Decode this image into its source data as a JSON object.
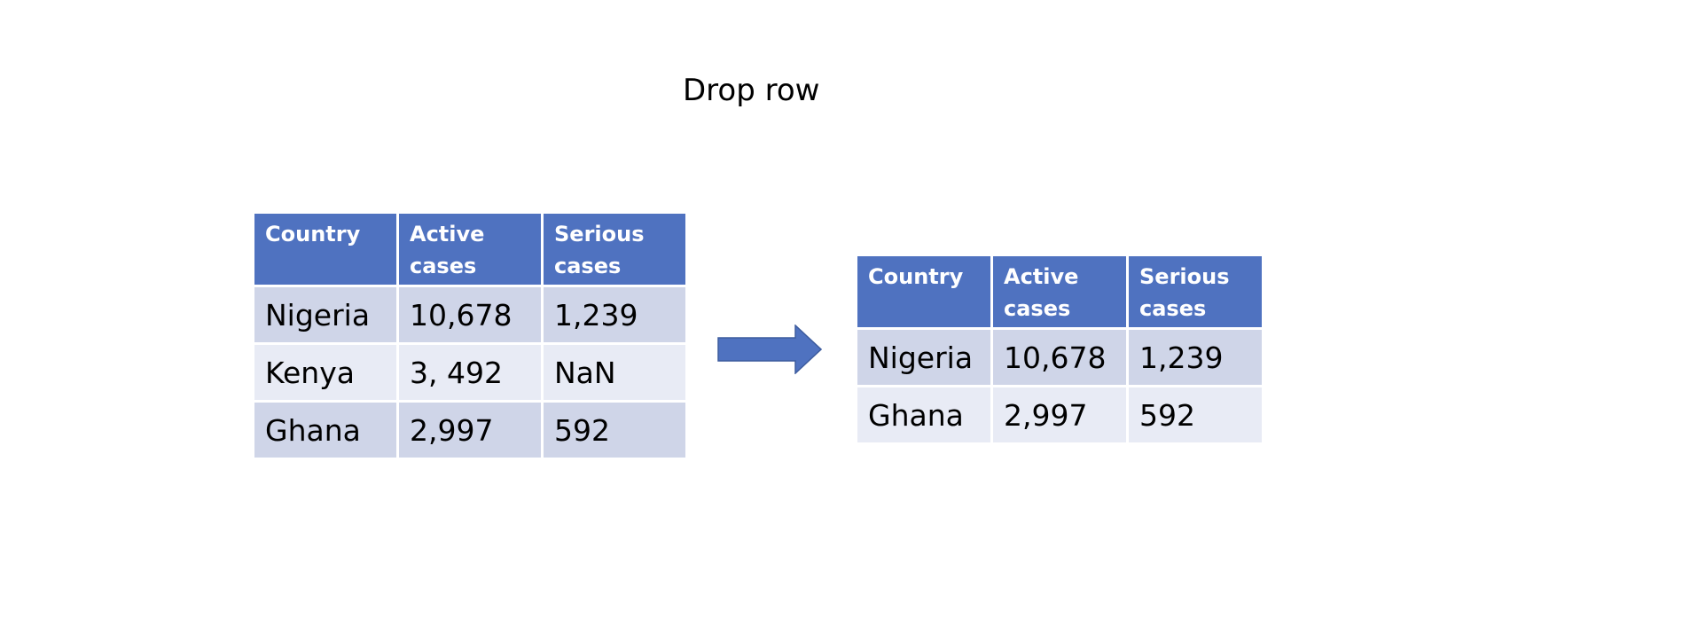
{
  "title": "Drop row",
  "colors": {
    "header_bg": "#4f72c0",
    "row_dark": "#cfd5e8",
    "row_light": "#e8ebf5",
    "arrow": "#4f72c0"
  },
  "left_table": {
    "headers": [
      "Country",
      "Active cases",
      "Serious cases"
    ],
    "rows": [
      [
        "Nigeria",
        "10,678",
        "1,239"
      ],
      [
        "Kenya",
        "3, 492",
        "NaN"
      ],
      [
        "Ghana",
        "2,997",
        "592"
      ]
    ]
  },
  "arrow_icon": "right-arrow-icon",
  "right_table": {
    "headers": [
      "Country",
      "Active cases",
      "Serious cases"
    ],
    "rows": [
      [
        "Nigeria",
        "10,678",
        "1,239"
      ],
      [
        "Ghana",
        "2,997",
        "592"
      ]
    ]
  }
}
